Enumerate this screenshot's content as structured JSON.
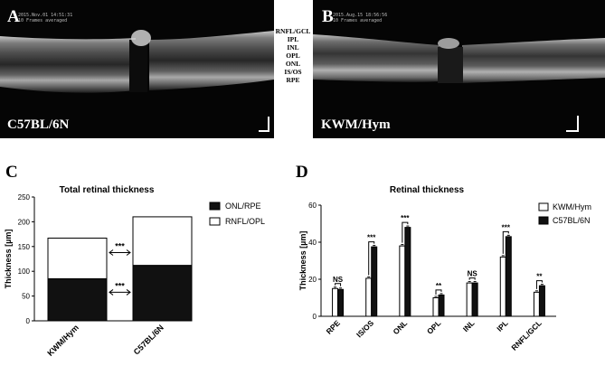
{
  "panels": {
    "A": {
      "letter": "A",
      "strain": "C57BL/6N",
      "stamp_line1": "2015.Nov.01 14:51:31",
      "stamp_line2": "10 Frames averaged"
    },
    "B": {
      "letter": "B",
      "strain": "KWM/Hym",
      "stamp_line1": "2015.Aug.15 18:56:56",
      "stamp_line2": "10 Frames averaged"
    },
    "C": {
      "letter": "C"
    },
    "D": {
      "letter": "D"
    }
  },
  "layer_labels": [
    "RNFL/GCL",
    "IPL",
    "INL",
    "OPL",
    "ONL",
    "IS/OS",
    "RPE"
  ],
  "chart_data": [
    {
      "id": "C",
      "type": "bar",
      "stacked": true,
      "title": "Total retinal thickness",
      "ylabel": "Thickness [µm]",
      "xlabel": "",
      "ylim": [
        0,
        250
      ],
      "yticks": [
        0,
        50,
        100,
        150,
        200,
        250
      ],
      "categories": [
        "KWM/Hym",
        "C57BL/6N"
      ],
      "series": [
        {
          "name": "ONL/RPE",
          "values": [
            85,
            112
          ],
          "color": "#111111"
        },
        {
          "name": "RNFL/OPL",
          "values": [
            82,
            98
          ],
          "color": "#ffffff"
        }
      ],
      "legend_position": "top-right",
      "significance": [
        "***",
        "***"
      ]
    },
    {
      "id": "D",
      "type": "bar",
      "title": "Retinal thickness",
      "ylabel": "Thickness [µm]",
      "xlabel": "",
      "ylim": [
        0,
        60
      ],
      "yticks": [
        0,
        20,
        40,
        60
      ],
      "categories": [
        "RPE",
        "IS/OS",
        "ONL",
        "OPL",
        "INL",
        "IPL",
        "RNFL/GCL"
      ],
      "series": [
        {
          "name": "KWM/Hym",
          "values": [
            15,
            20.5,
            38,
            10,
            18,
            32,
            13
          ],
          "color": "#ffffff"
        },
        {
          "name": "C57BL/6N",
          "values": [
            14.5,
            37.5,
            48,
            11.5,
            18,
            43,
            16.5
          ],
          "color": "#111111"
        }
      ],
      "legend_position": "top-right",
      "significance": [
        "NS",
        "***",
        "***",
        "**",
        "NS",
        "***",
        "**"
      ]
    }
  ]
}
